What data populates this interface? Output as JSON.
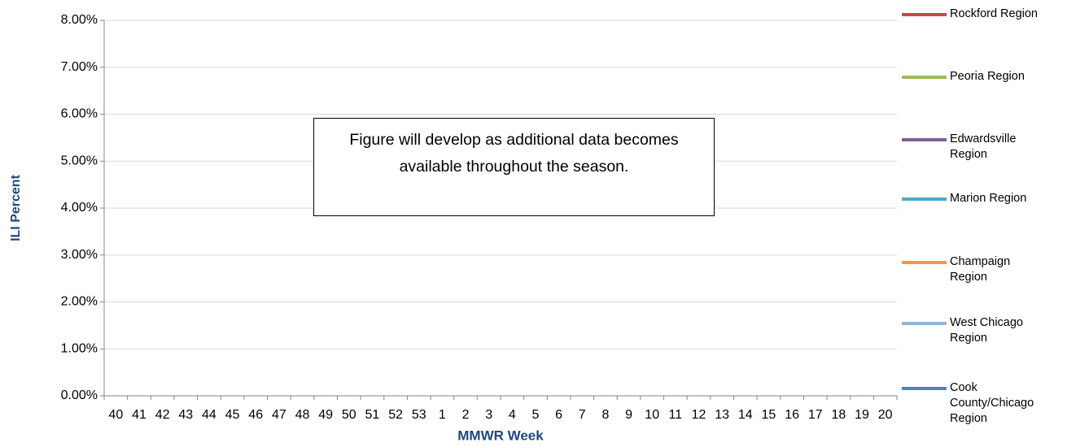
{
  "chart_data": {
    "type": "line",
    "x_label": "MMWR Week",
    "y_label": "ILI Percent",
    "annotation": "Figure will develop as additional data becomes available throughout the season.",
    "categories": [
      "40",
      "41",
      "42",
      "43",
      "44",
      "45",
      "46",
      "47",
      "48",
      "49",
      "50",
      "51",
      "52",
      "53",
      "1",
      "2",
      "3",
      "4",
      "5",
      "6",
      "7",
      "8",
      "9",
      "10",
      "11",
      "12",
      "13",
      "14",
      "15",
      "16",
      "17",
      "18",
      "19",
      "20"
    ],
    "ylim": [
      0,
      8
    ],
    "yticks": [
      {
        "value": 0,
        "label": "0.00%"
      },
      {
        "value": 1,
        "label": "1.00%"
      },
      {
        "value": 2,
        "label": "2.00%"
      },
      {
        "value": 3,
        "label": "3.00%"
      },
      {
        "value": 4,
        "label": "4.00%"
      },
      {
        "value": 5,
        "label": "5.00%"
      },
      {
        "value": 6,
        "label": "6.00%"
      },
      {
        "value": 7,
        "label": "7.00%"
      },
      {
        "value": 8,
        "label": "8.00%"
      }
    ],
    "grid": true,
    "series": [
      {
        "name": "Rockford Region",
        "color": "#be4b48",
        "values": [
          null,
          null,
          null,
          null,
          null,
          null,
          null,
          null,
          null,
          null,
          null,
          null,
          null,
          null,
          null,
          null,
          null,
          null,
          null,
          null,
          null,
          null,
          null,
          null,
          null,
          null,
          null,
          null,
          null,
          null,
          null,
          null,
          null,
          null
        ]
      },
      {
        "name": "Peoria Region",
        "color": "#9bbb59",
        "values": [
          null,
          null,
          null,
          null,
          null,
          null,
          null,
          null,
          null,
          null,
          null,
          null,
          null,
          null,
          null,
          null,
          null,
          null,
          null,
          null,
          null,
          null,
          null,
          null,
          null,
          null,
          null,
          null,
          null,
          null,
          null,
          null,
          null,
          null
        ]
      },
      {
        "name": "Edwardsville Region",
        "color": "#7f5f9f",
        "values": [
          null,
          null,
          null,
          null,
          null,
          null,
          null,
          null,
          null,
          null,
          null,
          null,
          null,
          null,
          null,
          null,
          null,
          null,
          null,
          null,
          null,
          null,
          null,
          null,
          null,
          null,
          null,
          null,
          null,
          null,
          null,
          null,
          null,
          null
        ]
      },
      {
        "name": "Marion Region",
        "color": "#4aacc6",
        "values": [
          null,
          null,
          null,
          null,
          null,
          null,
          null,
          null,
          null,
          null,
          null,
          null,
          null,
          null,
          null,
          null,
          null,
          null,
          null,
          null,
          null,
          null,
          null,
          null,
          null,
          null,
          null,
          null,
          null,
          null,
          null,
          null,
          null,
          null
        ]
      },
      {
        "name": "Champaign Region",
        "color": "#f79646",
        "values": [
          null,
          null,
          null,
          null,
          null,
          null,
          null,
          null,
          null,
          null,
          null,
          null,
          null,
          null,
          null,
          null,
          null,
          null,
          null,
          null,
          null,
          null,
          null,
          null,
          null,
          null,
          null,
          null,
          null,
          null,
          null,
          null,
          null,
          null
        ]
      },
      {
        "name": "West Chicago Region",
        "color": "#95b3d7",
        "values": [
          null,
          null,
          null,
          null,
          null,
          null,
          null,
          null,
          null,
          null,
          null,
          null,
          null,
          null,
          null,
          null,
          null,
          null,
          null,
          null,
          null,
          null,
          null,
          null,
          null,
          null,
          null,
          null,
          null,
          null,
          null,
          null,
          null,
          null
        ]
      },
      {
        "name": "Cook County/Chicago Region",
        "color": "#4f81bd",
        "values": [
          null,
          null,
          null,
          null,
          null,
          null,
          null,
          null,
          null,
          null,
          null,
          null,
          null,
          null,
          null,
          null,
          null,
          null,
          null,
          null,
          null,
          null,
          null,
          null,
          null,
          null,
          null,
          null,
          null,
          null,
          null,
          null,
          null,
          null
        ]
      }
    ]
  }
}
